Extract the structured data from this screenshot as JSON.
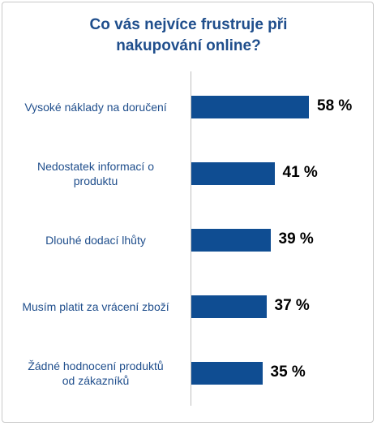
{
  "title_line1": "Co vás nejvíce frustruje při",
  "title_line2": "nakupování online?",
  "chart_data": {
    "type": "bar",
    "orientation": "horizontal",
    "title": "Co vás nejvíce frustruje při nakupování online?",
    "categories": [
      "Vysoké náklady na doručení",
      "Nedostatek informací o produktu",
      "Dlouhé dodací lhůty",
      "Musím platit za vrácení zboží",
      "Žádné hodnocení produktů od zákazníků"
    ],
    "values": [
      58,
      41,
      39,
      37,
      35
    ],
    "value_labels": [
      "58 %",
      "41 %",
      "39 %",
      "37 %",
      "35 %"
    ],
    "unit": "%",
    "xlim": [
      0,
      100
    ],
    "grid": false,
    "legend": "none",
    "bar_color": "#0f4d92",
    "label_color": "#1f4e8c"
  }
}
